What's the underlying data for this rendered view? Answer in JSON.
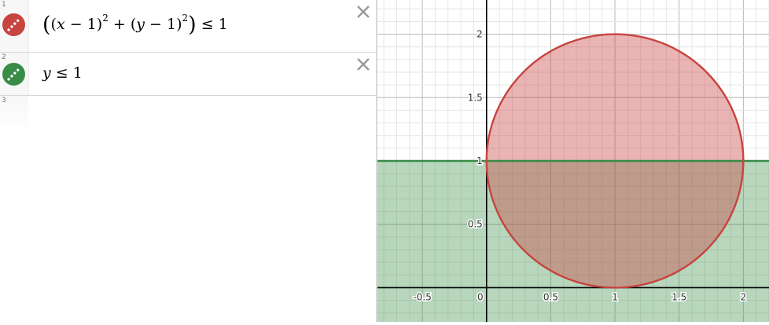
{
  "expressions": [
    {
      "index": "1",
      "color": "#c74440",
      "icon": "paintbrush-icon",
      "latex_parts": {
        "outer_open": "(",
        "inner_open": "(",
        "x": "x",
        "minus1": " − 1",
        "close1": ")",
        "exp1": "2",
        "plus": " + ",
        "inner_open2": "(",
        "y": "y",
        "minus2": " − 1",
        "close2": ")",
        "exp2": "2",
        "outer_close": ")",
        "rel": " ≤ 1"
      }
    },
    {
      "index": "2",
      "color": "#388c46",
      "icon": "paintbrush-icon",
      "latex_parts": {
        "y": "y",
        "rel": " ≤ 1"
      }
    }
  ],
  "empty_row_index": "3",
  "graph": {
    "xlim": [
      -0.85,
      2.2
    ],
    "ylim": [
      -0.27,
      2.27
    ],
    "grid": true,
    "x_tick_labels": [
      "-0.5",
      "0",
      "0.5",
      "1",
      "1.5",
      "2"
    ],
    "y_tick_labels": [
      "0.5",
      "1",
      "1.5",
      "2"
    ],
    "circle": {
      "center": [
        1,
        1
      ],
      "radius": 1,
      "color": "#c74440"
    },
    "half_plane": {
      "boundary_y": 1,
      "direction": "below",
      "color": "#388c46"
    }
  }
}
